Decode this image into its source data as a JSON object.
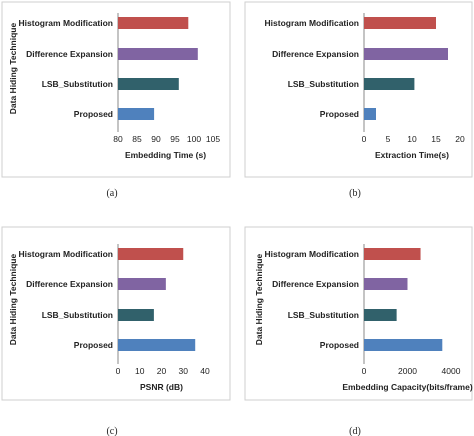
{
  "chart_data": [
    {
      "type": "bar",
      "orientation": "horizontal",
      "categories": [
        "Histogram Modification",
        "Difference Expansion",
        "LSB_Substitution",
        "Proposed"
      ],
      "values": [
        98.5,
        101,
        96,
        89.5
      ],
      "colors": [
        "#c0504d",
        "#8064a2",
        "#31616b",
        "#4f81bd"
      ],
      "xlim": [
        80,
        105
      ],
      "xticks": [
        "80",
        "85",
        "90",
        "95",
        "100",
        "105"
      ],
      "xlabel": "Embedding Time (s)",
      "ylabel": "Data Hiding Technique",
      "caption": "(a)",
      "grid": false
    },
    {
      "type": "bar",
      "orientation": "horizontal",
      "categories": [
        "Histogram Modification",
        "Difference Expansion",
        "LSB_Substitution",
        "Proposed"
      ],
      "values": [
        15,
        17.5,
        10.5,
        2.5
      ],
      "colors": [
        "#c0504d",
        "#8064a2",
        "#31616b",
        "#4f81bd"
      ],
      "xlim": [
        0,
        20
      ],
      "xticks": [
        "0",
        "5",
        "10",
        "15",
        "20"
      ],
      "xlabel": "Extraction Time(s)",
      "ylabel": "",
      "caption": "(b)",
      "grid": false
    },
    {
      "type": "bar",
      "orientation": "horizontal",
      "categories": [
        "Histogram Modification",
        "Difference Expansion",
        "LSB_Substitution",
        "Proposed"
      ],
      "values": [
        30,
        22,
        16.5,
        35.5
      ],
      "colors": [
        "#c0504d",
        "#8064a2",
        "#31616b",
        "#4f81bd"
      ],
      "xlim": [
        0,
        40
      ],
      "xticks": [
        "0",
        "10",
        "20",
        "30",
        "40"
      ],
      "xlabel": "PSNR (dB)",
      "ylabel": "Data Hiding Technique",
      "caption": "(c)",
      "grid": false
    },
    {
      "type": "bar",
      "orientation": "horizontal",
      "categories": [
        "Histogram Modification",
        "Difference Expansion",
        "LSB_Substitution",
        "Proposed"
      ],
      "values": [
        2600,
        2000,
        1500,
        3600
      ],
      "colors": [
        "#c0504d",
        "#8064a2",
        "#31616b",
        "#4f81bd"
      ],
      "xlim": [
        0,
        4000
      ],
      "xticks": [
        "0",
        "2000",
        "4000"
      ],
      "xlabel": "Embedding Capacity(bits/frame)",
      "ylabel": "Data Hiding Technique",
      "caption": "(d)",
      "grid": false
    }
  ]
}
